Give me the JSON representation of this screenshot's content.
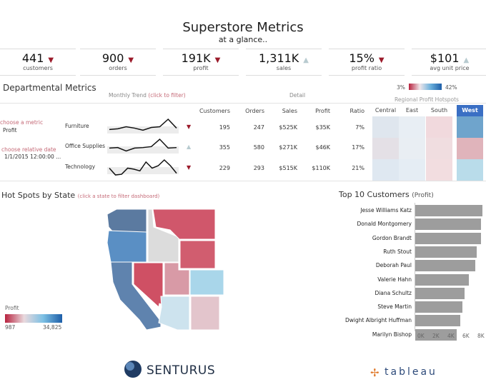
{
  "header": {
    "title": "Superstore Metrics",
    "subtitle": "at a glance.."
  },
  "kpis": [
    {
      "value": "441",
      "label": "customers",
      "trend": "down"
    },
    {
      "value": "900",
      "label": "orders",
      "trend": "down"
    },
    {
      "value": "191K",
      "label": "profit",
      "trend": "down"
    },
    {
      "value": "1,311K",
      "label": "sales",
      "trend": "up"
    },
    {
      "value": "15%",
      "label": "profit ratio",
      "trend": "down"
    },
    {
      "value": "$101",
      "label": "avg unit price",
      "trend": "up"
    }
  ],
  "departmental": {
    "title": "Departmental Metrics",
    "trend_label": "Monthly Trend",
    "trend_hint": "(click to filter)",
    "detail_label": "Detail",
    "metric_prompt": "choose a metric",
    "metric_value": "Profit",
    "date_prompt": "choose relative date",
    "date_value": "1/1/2015 12:00:00 ...",
    "legend_min": "3%",
    "legend_max": "42%",
    "hotspot_label": "Regional Profit Hotspots",
    "columns": [
      "Customers",
      "Orders",
      "Sales",
      "Profit",
      "Ratio"
    ],
    "regions": [
      "Central",
      "East",
      "South",
      "West"
    ],
    "rows": [
      {
        "name": "Furniture",
        "trend": "down",
        "customers": "195",
        "orders": "247",
        "sales": "$525K",
        "profit": "$35K",
        "ratio": "7%",
        "spark": [
          4,
          4.5,
          6,
          5,
          3.5,
          5.5,
          6,
          11.5,
          5
        ],
        "heat": [
          "#dfe6ee",
          "#e8eef4",
          "#f1d9dd",
          "#6fa4cc"
        ]
      },
      {
        "name": "Office Supplies",
        "trend": "up",
        "customers": "355",
        "orders": "580",
        "sales": "$271K",
        "profit": "$46K",
        "ratio": "17%",
        "spark": [
          7,
          7.5,
          4,
          7,
          7.5,
          8.5,
          16,
          7,
          7.5
        ],
        "heat": [
          "#e4e0e6",
          "#e9eef3",
          "#f0dde0",
          "#e0b4bb"
        ]
      },
      {
        "name": "Technology",
        "trend": "down",
        "customers": "229",
        "orders": "293",
        "sales": "$515K",
        "profit": "$110K",
        "ratio": "21%",
        "spark": [
          11,
          1,
          2,
          11,
          9.5,
          7,
          20,
          11,
          14.5,
          23,
          14.5,
          3.5
        ],
        "heat": [
          "#dfe8f1",
          "#e5edf4",
          "#f2dde0",
          "#b9dcea"
        ]
      }
    ]
  },
  "map": {
    "title": "Hot Spots by State",
    "hint": "(click a state to filter dashboard)",
    "legend_title": "Profit",
    "legend_min": "987",
    "legend_max": "34,825",
    "states": [
      {
        "id": "WA",
        "color": "#5b7aa0"
      },
      {
        "id": "OR",
        "color": "#5a8fc4"
      },
      {
        "id": "CA",
        "color": "#5f83ae"
      },
      {
        "id": "ID",
        "color": "#dcdcdc"
      },
      {
        "id": "MT",
        "color": "#d0576b"
      },
      {
        "id": "WY",
        "color": "#d15d6f"
      },
      {
        "id": "NV",
        "color": "#cf5064"
      },
      {
        "id": "UT",
        "color": "#d89aa6"
      },
      {
        "id": "CO",
        "color": "#a9d6ea"
      },
      {
        "id": "AZ",
        "color": "#cde3ee"
      },
      {
        "id": "NM",
        "color": "#e3c5cc"
      }
    ]
  },
  "top_customers": {
    "title": "Top 10 Customers",
    "subtitle": "(Profit)",
    "ticks": [
      "0K",
      "2K",
      "4K",
      "6K",
      "8K"
    ],
    "items": [
      {
        "name": "Jesse Williams Katz",
        "value": 8.6
      },
      {
        "name": "Donald Montgomery",
        "value": 8.4
      },
      {
        "name": "Gordon Brandt",
        "value": 8.4
      },
      {
        "name": "Ruth Stout",
        "value": 7.9
      },
      {
        "name": "Deborah Paul",
        "value": 7.7
      },
      {
        "name": "Valerie Hahn",
        "value": 6.9
      },
      {
        "name": "Diana Schultz",
        "value": 6.3
      },
      {
        "name": "Steve Martin",
        "value": 6.0
      },
      {
        "name": "Dwight Albright Huffman",
        "value": 5.8
      },
      {
        "name": "Marilyn Bishop",
        "value": 5.3
      }
    ]
  },
  "footer": {
    "left_logo": "SENTURUS",
    "right_logo": "tableau"
  },
  "colors": {
    "down": "#9b1b2b",
    "up": "#b8cbd0",
    "bar": "#9d9d9d",
    "west_header": "#3a6fc4"
  }
}
